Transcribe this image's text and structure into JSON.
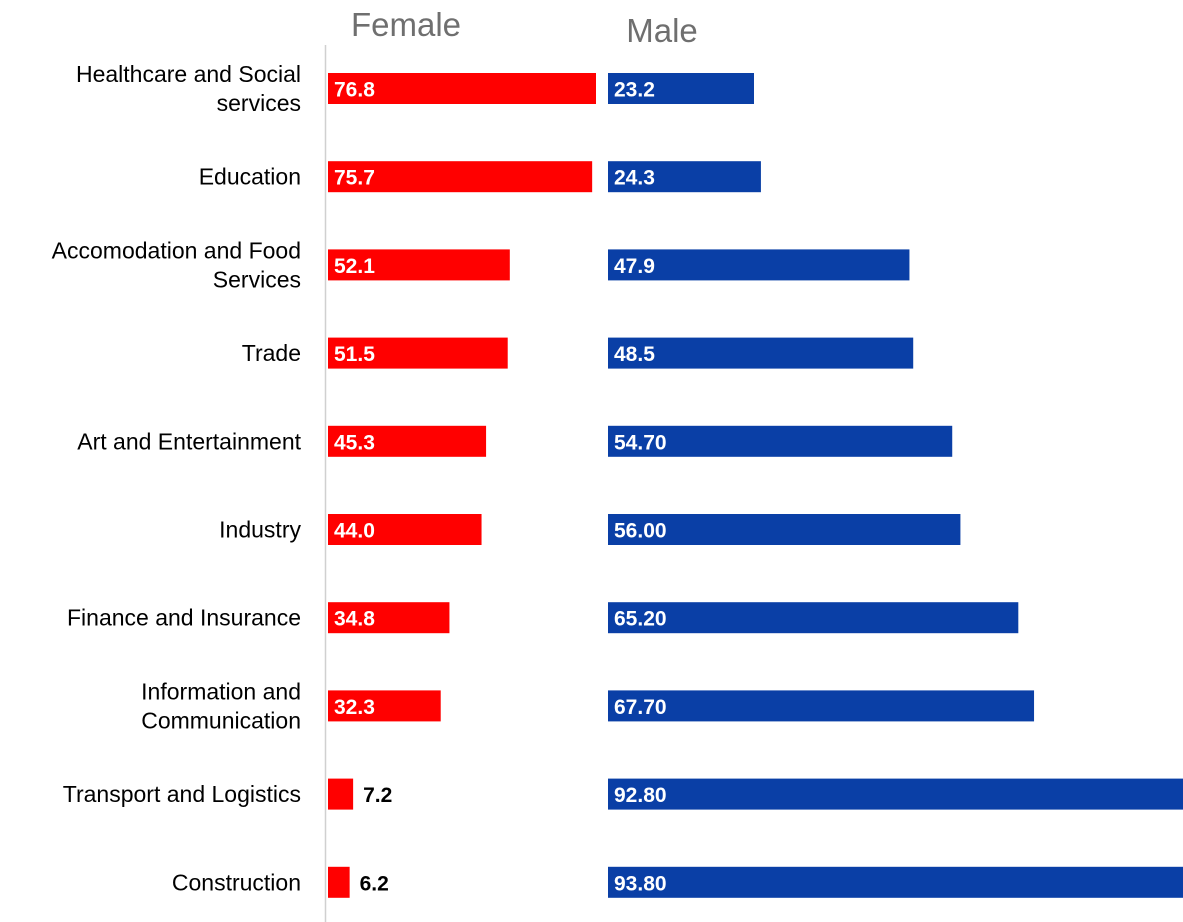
{
  "chart_data": {
    "type": "bar",
    "orientation": "horizontal",
    "layout": "side-by-side panels",
    "categories": [
      [
        "Healthcare and Social",
        "services"
      ],
      [
        "Education"
      ],
      [
        "Accomodation and Food",
        "Services"
      ],
      [
        "Trade"
      ],
      [
        "Art and Entertainment"
      ],
      [
        "Industry"
      ],
      [
        "Finance and Insurance"
      ],
      [
        "Information and",
        "Communication"
      ],
      [
        "Transport and Logistics"
      ],
      [
        "Construction"
      ]
    ],
    "series": [
      {
        "name": "Female",
        "color": "#ff0000",
        "values": [
          76.8,
          75.7,
          52.1,
          51.5,
          45.3,
          44.0,
          34.8,
          32.3,
          7.2,
          6.2
        ],
        "labels": [
          "76.8",
          "75.7",
          "52.1",
          "51.5",
          "45.3",
          "44.0",
          "34.8",
          "32.3",
          "7.2",
          "6.2"
        ]
      },
      {
        "name": "Male",
        "color": "#0a3fa6",
        "values": [
          23.2,
          24.3,
          47.9,
          48.5,
          54.7,
          56.0,
          65.2,
          67.7,
          92.8,
          93.8
        ],
        "labels": [
          "23.2",
          "24.3",
          "47.9",
          "48.5",
          "54.70",
          "56.00",
          "65.20",
          "67.70",
          "92.80",
          "93.80"
        ]
      }
    ],
    "grid": false,
    "legend": "none"
  }
}
